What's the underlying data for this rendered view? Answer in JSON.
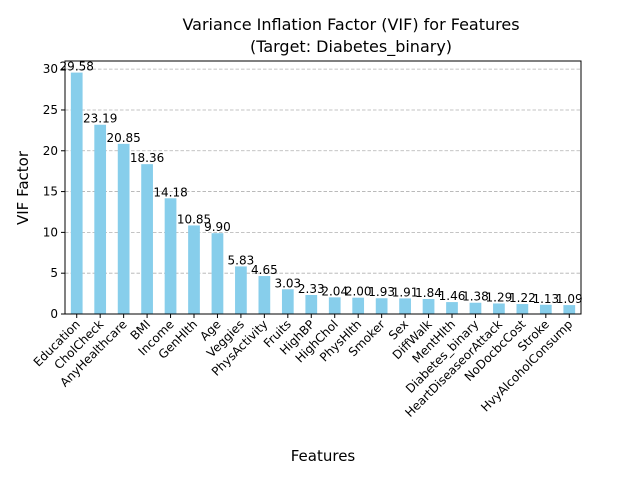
{
  "chart_data": {
    "type": "bar",
    "title": "Variance Inflation Factor (VIF) for Features",
    "subtitle": "(Target: Diabetes_binary)",
    "xlabel": "Features",
    "ylabel": "VIF Factor",
    "ylim": [
      0,
      31
    ],
    "yticks": [
      0,
      5,
      10,
      15,
      20,
      25,
      30
    ],
    "grid": "y-dashed",
    "bar_color": "#87CEEB",
    "categories": [
      "Education",
      "CholCheck",
      "AnyHealthcare",
      "BMI",
      "Income",
      "GenHlth",
      "Age",
      "Veggies",
      "PhysActivity",
      "Fruits",
      "HighBP",
      "HighChol",
      "PhysHlth",
      "Smoker",
      "Sex",
      "DiffWalk",
      "MentHlth",
      "Diabetes_binary",
      "HeartDiseaseorAttack",
      "NoDocbcCost",
      "Stroke",
      "HvyAlcoholConsump"
    ],
    "values": [
      29.58,
      23.19,
      20.85,
      18.36,
      14.18,
      10.85,
      9.9,
      5.83,
      4.65,
      3.03,
      2.33,
      2.04,
      2.0,
      1.93,
      1.91,
      1.84,
      1.46,
      1.38,
      1.29,
      1.22,
      1.13,
      1.09
    ],
    "value_labels": [
      "29.58",
      "23.19",
      "20.85",
      "18.36",
      "14.18",
      "10.85",
      "9.90",
      "5.83",
      "4.65",
      "3.03",
      "2.33",
      "2.04",
      "2.00",
      "1.93",
      "1.91",
      "1.84",
      "1.46",
      "1.38",
      "1.29",
      "1.22",
      "1.13",
      "1.09"
    ]
  }
}
